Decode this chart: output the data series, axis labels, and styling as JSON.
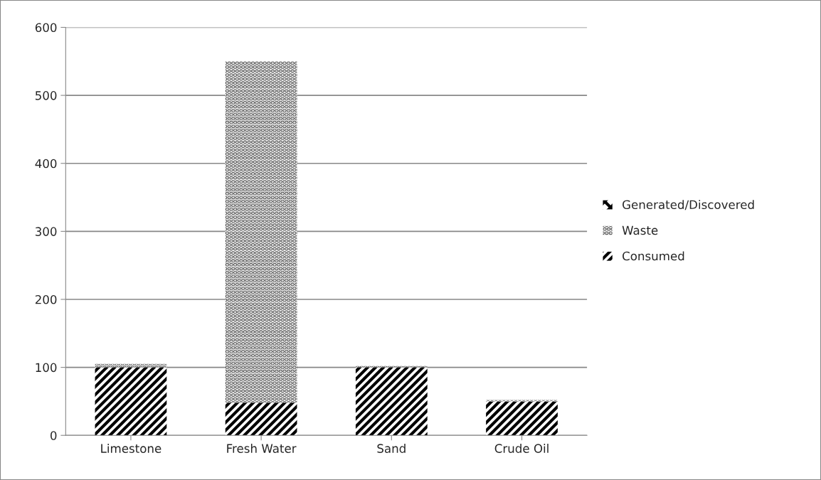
{
  "chart_data": {
    "type": "bar",
    "stacked": true,
    "categories": [
      "Limestone",
      "Fresh Water",
      "Sand",
      "Crude Oil"
    ],
    "series": [
      {
        "name": "Consumed",
        "color": "#000000",
        "values": [
          100,
          48,
          100,
          50
        ]
      },
      {
        "name": "Waste",
        "color": "#555555",
        "values": [
          5,
          502,
          2,
          2
        ]
      },
      {
        "name": "Generated/Discovered",
        "color": "#000000",
        "values": [
          0,
          0,
          0,
          0
        ]
      }
    ],
    "ylim": [
      0,
      600
    ],
    "yticks": [
      0,
      100,
      200,
      300,
      400,
      500,
      600
    ],
    "grid": "y",
    "legend": "right"
  }
}
